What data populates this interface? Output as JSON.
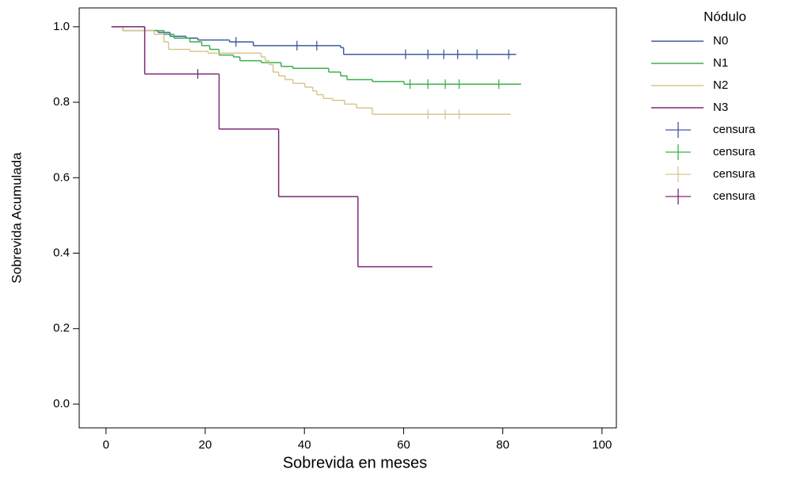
{
  "chart_data": {
    "type": "step",
    "x_label": "Sobrevida en meses",
    "y_label": "Sobrevida Acumulada",
    "xlim": [
      -5.4,
      102.9
    ],
    "ylim": [
      -0.063,
      1.05
    ],
    "xticks": [
      0,
      20,
      40,
      60,
      80,
      100
    ],
    "yticks": [
      {
        "value": 0,
        "label": "0.0"
      },
      0.2,
      0.4,
      0.6,
      0.8,
      {
        "value": 1,
        "label": "1.0"
      }
    ],
    "legend_title": "Nódulo",
    "legend": "outside-right",
    "series": [
      {
        "name": "N0",
        "color": "#3d5a9e",
        "x": [
          1.1,
          7.8,
          10.5,
          12.9,
          16.1,
          18.5,
          24.9,
          29.7,
          47.3,
          47.9,
          82.7
        ],
        "values": [
          1,
          0.99,
          0.985,
          0.975,
          0.97,
          0.965,
          0.96,
          0.95,
          0.945,
          0.927,
          0.927
        ]
      },
      {
        "name": "N1",
        "color": "#3cb04a",
        "x": [
          1.1,
          3.4,
          11.7,
          13.7,
          16.9,
          19.3,
          20.9,
          22.8,
          25.7,
          27,
          31.3,
          35.3,
          37.7,
          44.9,
          47.3,
          48.6,
          53.7,
          60.1,
          83.7
        ],
        "values": [
          1,
          0.99,
          0.98,
          0.97,
          0.96,
          0.95,
          0.94,
          0.925,
          0.92,
          0.91,
          0.905,
          0.895,
          0.89,
          0.88,
          0.87,
          0.86,
          0.855,
          0.848,
          0.848
        ]
      },
      {
        "name": "N2",
        "color": "#d6c690",
        "x": [
          1.1,
          3.4,
          9.7,
          11.7,
          12.6,
          16.9,
          20.6,
          31.3,
          32.1,
          32.9,
          33.7,
          34.8,
          36.1,
          37.7,
          40.1,
          41.7,
          42.5,
          43.8,
          45.7,
          48.1,
          50.5,
          53.7,
          81.6
        ],
        "values": [
          1,
          0.99,
          0.98,
          0.96,
          0.94,
          0.935,
          0.93,
          0.92,
          0.91,
          0.9,
          0.88,
          0.87,
          0.86,
          0.85,
          0.84,
          0.83,
          0.82,
          0.81,
          0.805,
          0.795,
          0.785,
          0.768,
          0.768
        ]
      },
      {
        "name": "N3",
        "color": "#7a2a7a",
        "x": [
          1.1,
          7.8,
          22.8,
          34.8,
          50.8,
          65.8
        ],
        "values": [
          1,
          0.875,
          0.729,
          0.55,
          0.364,
          0.364
        ]
      }
    ],
    "censored": [
      {
        "name": "censura",
        "color": "#3d5a9e",
        "x": [
          26.2,
          38.5,
          42.5,
          60.4,
          64.9,
          68.1,
          70.9,
          74.8,
          81.2
        ],
        "values": [
          0.96,
          0.95,
          0.95,
          0.927,
          0.927,
          0.927,
          0.927,
          0.927,
          0.927
        ]
      },
      {
        "name": "censura",
        "color": "#3cb04a",
        "x": [
          61.3,
          64.9,
          68.4,
          71.2,
          79.2
        ],
        "values": [
          0.848,
          0.848,
          0.848,
          0.848,
          0.848
        ]
      },
      {
        "name": "censura",
        "color": "#d6c690",
        "x": [
          64.9,
          68.4,
          71.2
        ],
        "values": [
          0.768,
          0.768,
          0.768
        ]
      },
      {
        "name": "censura",
        "color": "#7a2a7a",
        "x": [
          18.5
        ],
        "values": [
          0.875
        ]
      }
    ]
  }
}
